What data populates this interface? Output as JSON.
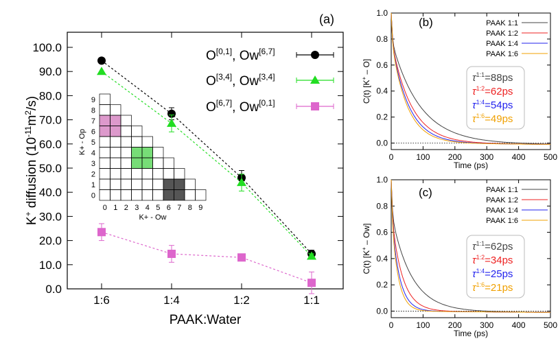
{
  "chart_data": [
    {
      "panel": "(a)",
      "type": "line",
      "xlabel": "PAAK:Water",
      "ylabel_main": "K",
      "ylabel_sup": "+",
      "ylabel_rest": " diffusion (10",
      "ylabel_sup2": "-11",
      "ylabel_unit": "m",
      "ylabel_sup3": "2",
      "ylabel_end": "/s)",
      "categories": [
        "1:6",
        "1:4",
        "1:2",
        "1:1"
      ],
      "ylim": [
        0,
        100
      ],
      "yticks": [
        "0.0",
        "10.0",
        "20.0",
        "30.0",
        "40.0",
        "50.0",
        "60.0",
        "70.0",
        "80.0",
        "90.0",
        "100.0"
      ],
      "legend_position": "top-right",
      "series": [
        {
          "name_a": "O",
          "name_a_sup": "[0,1]",
          "name_b": ", Ow",
          "name_b_sup": "[6,7]",
          "color": "#000000",
          "marker": "circle",
          "values": [
            94.5,
            72.5,
            46.0,
            14.5
          ],
          "errors": [
            0,
            2.5,
            3.0,
            1.5
          ]
        },
        {
          "name_a": "O",
          "name_a_sup": "[3,4]",
          "name_b": ", Ow",
          "name_b_sup": "[3,4]",
          "color": "#22dd22",
          "marker": "triangle",
          "values": [
            90.0,
            68.5,
            44.0,
            13.5
          ],
          "errors": [
            0,
            3.5,
            3.5,
            1.0
          ]
        },
        {
          "name_a": "O",
          "name_a_sup": "[6,7]",
          "name_b": ", Ow",
          "name_b_sup": "[0,1]",
          "color": "#dd66cc",
          "marker": "square",
          "values": [
            23.5,
            14.5,
            13.0,
            2.5
          ],
          "errors": [
            3.5,
            3.5,
            0.5,
            4.5
          ]
        }
      ],
      "inset": {
        "type": "grid",
        "xlabel": "K+ - Ow",
        "ylabel": "K+ - Op",
        "xticks": [
          "0",
          "1",
          "2",
          "3",
          "4",
          "5",
          "6",
          "7",
          "8",
          "9"
        ],
        "yticks": [
          "0",
          "1",
          "2",
          "3",
          "4",
          "5",
          "6",
          "7",
          "8",
          "9"
        ],
        "highlights": [
          {
            "x": [
              0,
              1
            ],
            "y": [
              6,
              7
            ],
            "color": "#dd99cc"
          },
          {
            "x": [
              3,
              4
            ],
            "y": [
              3,
              4
            ],
            "color": "#77dd77"
          },
          {
            "x": [
              6,
              7
            ],
            "y": [
              0,
              1
            ],
            "color": "#555555"
          }
        ]
      }
    },
    {
      "panel": "(b)",
      "type": "line",
      "ylabel": "C(t) [K",
      "ylabel_sup": "+",
      "ylabel_end": " – O]",
      "xlabel": "Time (ps)",
      "xlim": [
        0,
        500
      ],
      "ylim": [
        0,
        1.0
      ],
      "xticks": [
        "0",
        "100",
        "200",
        "300",
        "400",
        "500"
      ],
      "yticks": [
        "0.0",
        "0.2",
        "0.4",
        "0.6",
        "0.8",
        "1.0"
      ],
      "series": [
        {
          "name": "PAAK 1:1",
          "color": "#444444",
          "tau_label": "1:1",
          "tau_value": "=88ps",
          "fast": 0.2,
          "tau": 88
        },
        {
          "name": "PAAK 1:2",
          "color": "#ee2222",
          "tau_label": "1:2",
          "tau_value": "=62ps",
          "fast": 0.2,
          "tau": 62
        },
        {
          "name": "PAAK 1:4",
          "color": "#2222ee",
          "tau_label": "1:4",
          "tau_value": "=54ps",
          "fast": 0.2,
          "tau": 54
        },
        {
          "name": "PAAK 1:6",
          "color": "#f0a000",
          "tau_label": "1:6",
          "tau_value": "=49ps",
          "fast": 0.2,
          "tau": 49
        }
      ]
    },
    {
      "panel": "(c)",
      "type": "line",
      "ylabel": "C(t) [K",
      "ylabel_sup": "+",
      "ylabel_end": " – Ow]",
      "xlabel": "Time (ps)",
      "xlim": [
        0,
        500
      ],
      "ylim": [
        0,
        1.0
      ],
      "xticks": [
        "0",
        "100",
        "200",
        "300",
        "400",
        "500"
      ],
      "yticks": [
        "0.0",
        "0.2",
        "0.4",
        "0.6",
        "0.8",
        "1.0"
      ],
      "series": [
        {
          "name": "PAAK 1:1",
          "color": "#444444",
          "tau_label": "1:1",
          "tau_value": "=62ps",
          "fast": 0.25,
          "tau": 62
        },
        {
          "name": "PAAK 1:2",
          "color": "#ee2222",
          "tau_label": "1:2",
          "tau_value": "=34ps",
          "fast": 0.25,
          "tau": 34
        },
        {
          "name": "PAAK 1:4",
          "color": "#2222ee",
          "tau_label": "1:4",
          "tau_value": "=25ps",
          "fast": 0.25,
          "tau": 25
        },
        {
          "name": "PAAK 1:6",
          "color": "#f0a000",
          "tau_label": "1:6",
          "tau_value": "=21ps",
          "fast": 0.25,
          "tau": 21
        }
      ]
    }
  ]
}
